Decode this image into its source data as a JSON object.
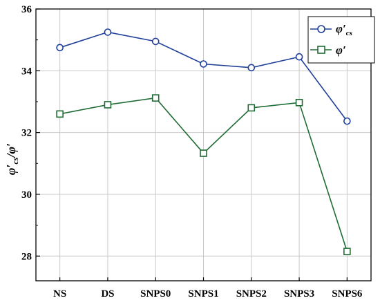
{
  "chart_data": {
    "type": "line",
    "categories": [
      "NS",
      "DS",
      "SNPS0",
      "SNPS1",
      "SNPS2",
      "SNPS3",
      "SNPS6"
    ],
    "ylabel": {
      "main": "φ′",
      "sub": "cs",
      "rest": "/φ′"
    },
    "ylim": [
      27.2,
      36
    ],
    "yticks": [
      28,
      30,
      32,
      34,
      36
    ],
    "grid": true,
    "legend_position": "top-right",
    "series": [
      {
        "name": "φ′",
        "name_sub": "cs",
        "values": [
          34.75,
          35.25,
          34.95,
          34.22,
          34.1,
          34.45,
          32.37
        ],
        "color": "#1f3f99",
        "marker": "circle"
      },
      {
        "name": "φ′",
        "name_sub": "",
        "values": [
          32.6,
          32.9,
          33.12,
          31.33,
          32.8,
          32.97,
          28.15
        ],
        "color": "#1f6b34",
        "marker": "square"
      }
    ]
  }
}
